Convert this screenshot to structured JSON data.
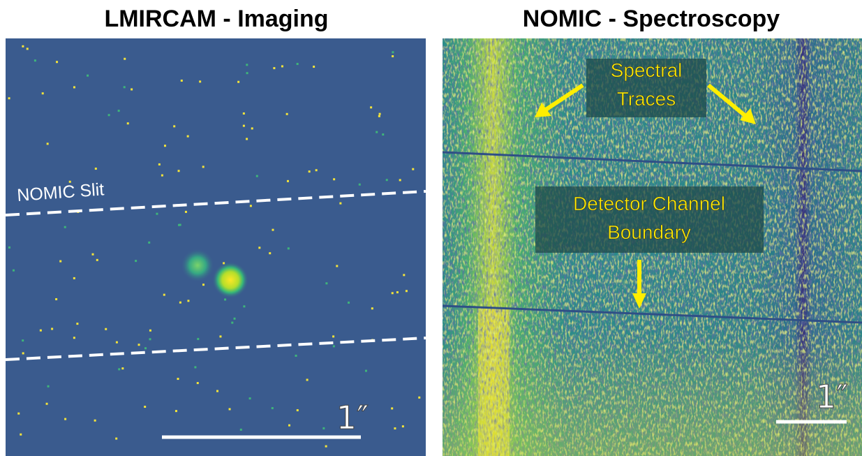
{
  "panels": [
    {
      "title": "LMIRCAM - Imaging",
      "annotations": [
        "NOMIC Slit"
      ],
      "scale_label": "1″"
    },
    {
      "title": "NOMIC - Spectroscopy",
      "annotations": [
        [
          "Spectral",
          "Traces"
        ],
        [
          "Detector Channel",
          "Boundary"
        ]
      ],
      "scale_label": "1″"
    }
  ]
}
